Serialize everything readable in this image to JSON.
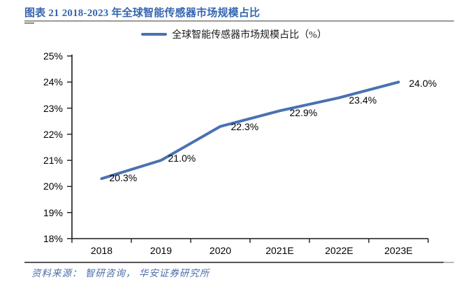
{
  "page": {
    "title": "图表 21 2018-2023 年全球智能传感器市场规模占比",
    "source_note": "资料来源： 智研咨询， 华安证券研究所"
  },
  "legend": {
    "label": "全球智能传感器市场规模占比（%）",
    "swatch": "line-swatch"
  },
  "colors": {
    "title_blue": "#3566b0",
    "series_line": "#4a72b2",
    "source_blue": "#4a6fa8",
    "axis": "#1b1b1b",
    "header_rule": "#9a9a9a",
    "footer_rule": "#565656"
  },
  "chart_data": {
    "type": "line",
    "title": "全球智能传感器市场规模占比（%）",
    "categories": [
      "2018",
      "2019",
      "2020",
      "2021E",
      "2022E",
      "2023E"
    ],
    "values": [
      20.3,
      21.0,
      22.3,
      22.9,
      23.4,
      24.0
    ],
    "labels": [
      "20.3%",
      "21.0%",
      "22.3%",
      "22.9%",
      "23.4%",
      "24.0%"
    ],
    "ytick_labels": [
      "25%",
      "24%",
      "23%",
      "22%",
      "21%",
      "20%",
      "19%",
      "18%"
    ],
    "ylim": [
      18,
      25
    ],
    "ytick_step": 1,
    "xlabel": "",
    "ylabel": "",
    "grid": false,
    "legend_position": "top-center",
    "line_color": "#4a72b2"
  }
}
